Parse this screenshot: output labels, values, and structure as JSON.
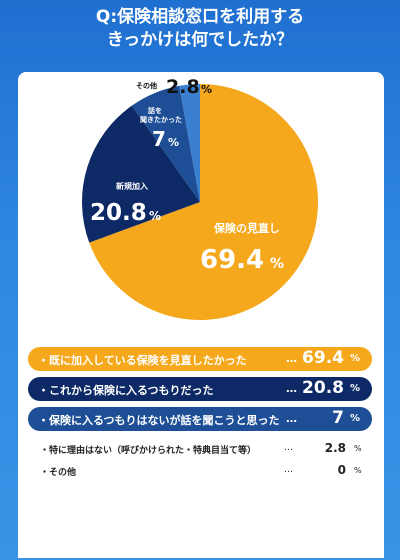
{
  "title": {
    "line1": "Q:保険相談窓口を利用する",
    "line2": "きっかけは何でしたか？"
  },
  "colors": {
    "minaoshi": "#f5a81c",
    "shinki": "#0d2a66",
    "hanashi": "#1d4e96",
    "sonota": "#3a7fd0"
  },
  "chart_data": {
    "type": "pie",
    "title": "Q:保険相談窓口を利用するきっかけは何でしたか？",
    "unit": "%",
    "slices": [
      {
        "label": "保険の見直し",
        "value": 69.4
      },
      {
        "label": "新規加入",
        "value": 20.8
      },
      {
        "label": "話を聞きたかった",
        "value": 7
      },
      {
        "label": "その他",
        "value": 2.8
      }
    ],
    "pie_labels": {
      "minaoshi_name": "保険の見直し",
      "minaoshi_val": "69.4",
      "shinki_name": "新規加入",
      "shinki_val": "20.8",
      "hanashi_name1": "話を",
      "hanashi_name2": "聞きたかった",
      "hanashi_val": "7",
      "sonota_name": "その他",
      "sonota_val": "2.8",
      "pct": "%"
    }
  },
  "answers": [
    {
      "label": "・既に加入している保険を見直したかった",
      "dots": "…",
      "value": "69.4",
      "pct": "%"
    },
    {
      "label": "・これから保険に入るつもりだった",
      "dots": "…",
      "value": "20.8",
      "pct": "%"
    },
    {
      "label": "・保険に入るつもりはないが話を聞こうと思った",
      "dots": "…",
      "value": "7",
      "pct": "%"
    },
    {
      "label": "・特に理由はない（呼びかけられた・特典目当て等）",
      "dots": "…",
      "value": "2.8",
      "pct": "%"
    },
    {
      "label": "・その他",
      "dots": "…",
      "value": "0",
      "pct": "%"
    }
  ]
}
